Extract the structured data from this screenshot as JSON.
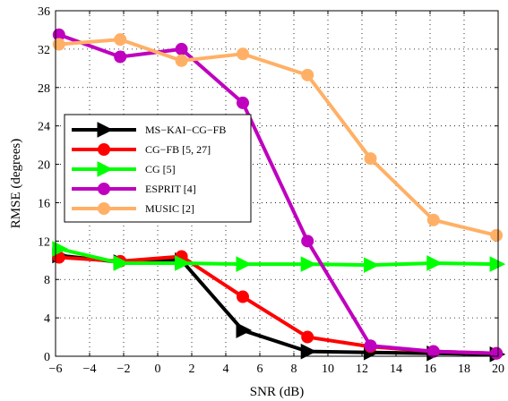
{
  "chart_data": {
    "type": "line",
    "title": "",
    "xlabel": "SNR (dB)",
    "ylabel": "RMSE (degrees)",
    "xlim": [
      -6,
      20
    ],
    "ylim": [
      0,
      36
    ],
    "xticks": [
      -6,
      -4,
      -2,
      0,
      2,
      4,
      6,
      8,
      10,
      12,
      14,
      16,
      18,
      20
    ],
    "yticks": [
      0,
      4,
      8,
      12,
      16,
      20,
      24,
      28,
      32,
      36
    ],
    "grid": true,
    "legend_position": "middle-left",
    "series": [
      {
        "name": "MS−KAI−CG−FB",
        "color": "#000000",
        "marker": "triangle-right",
        "x": [
          -5.8,
          -2.2,
          1.4,
          5.0,
          8.8,
          12.5,
          16.2,
          19.9
        ],
        "y": [
          10.5,
          9.8,
          10.0,
          2.7,
          0.5,
          0.4,
          0.3,
          0.2
        ]
      },
      {
        "name": "CG−FB [5, 27]",
        "color": "#ff0000",
        "marker": "circle",
        "x": [
          -5.8,
          -2.2,
          1.4,
          5.0,
          8.8,
          12.5,
          16.2,
          19.9
        ],
        "y": [
          10.3,
          9.9,
          10.4,
          6.2,
          2.0,
          1.0,
          0.5,
          0.3
        ]
      },
      {
        "name": "CG [5]",
        "color": "#00ff00",
        "marker": "triangle-right",
        "x": [
          -5.8,
          -2.2,
          1.4,
          5.0,
          8.8,
          12.5,
          16.2,
          19.9
        ],
        "y": [
          11.2,
          9.7,
          9.7,
          9.6,
          9.6,
          9.5,
          9.7,
          9.6
        ]
      },
      {
        "name": "ESPRIT [4]",
        "color": "#bf00bf",
        "marker": "circle",
        "x": [
          -5.8,
          -2.2,
          1.4,
          5.0,
          8.8,
          12.5,
          16.2,
          19.9
        ],
        "y": [
          33.5,
          31.2,
          32.0,
          26.4,
          12.0,
          1.1,
          0.5,
          0.3
        ]
      },
      {
        "name": "MUSIC [2]",
        "color": "#ffb066",
        "marker": "circle",
        "x": [
          -5.8,
          -2.2,
          1.4,
          5.0,
          8.8,
          12.5,
          16.2,
          19.9
        ],
        "y": [
          32.5,
          33.0,
          30.8,
          31.5,
          29.3,
          20.6,
          14.2,
          12.6
        ]
      }
    ]
  }
}
